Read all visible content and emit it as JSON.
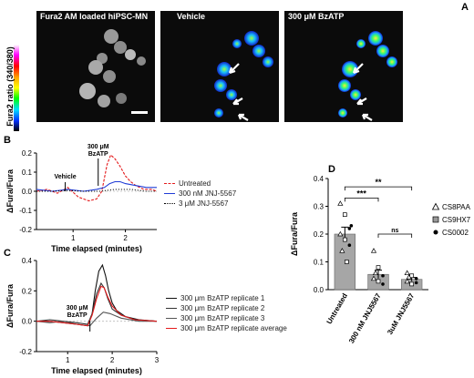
{
  "panels": {
    "a": "A",
    "b": "B",
    "c": "C",
    "d": "D"
  },
  "panel_a": {
    "titles": [
      "Fura2 AM loaded hiPSC-MN",
      "Vehicle",
      "300 μM BzATP"
    ],
    "colorbar_label": "Fura2 ratio (340/380)"
  },
  "colors": {
    "untreated": "#e41a1c",
    "jnj300": "#1f3bd6",
    "jnj3": "#000000",
    "rep1": "#111111",
    "rep2": "#333333",
    "rep3": "#555555",
    "avg": "#e41a1c",
    "bar": "#a6a6a6"
  },
  "chart_data": [
    {
      "type": "line",
      "panel": "B",
      "xlabel": "Time elapsed (minutes)",
      "ylabel": "ΔFura/Fura",
      "xlim": [
        0.3,
        2.6
      ],
      "ylim": [
        -0.2,
        0.2
      ],
      "xticks": [
        1,
        2
      ],
      "yticks": [
        -0.2,
        -0.1,
        0.0,
        0.1,
        0.2
      ],
      "yticklabels": [
        "-0.2",
        "-0.1",
        "0.0",
        "0.1",
        "0.2"
      ],
      "annotations": [
        {
          "text": "Vehicle",
          "x": 0.85
        },
        {
          "text": "300 μM BzATP",
          "x": 1.48
        }
      ],
      "series": [
        {
          "name": "Untreated",
          "x": [
            0.3,
            0.5,
            0.7,
            0.9,
            1.1,
            1.3,
            1.45,
            1.55,
            1.65,
            1.72,
            1.8,
            1.9,
            2.0,
            2.1,
            2.2,
            2.35,
            2.5,
            2.6
          ],
          "y": [
            0.0,
            0.01,
            -0.01,
            0.02,
            -0.03,
            -0.05,
            -0.04,
            0.0,
            0.14,
            0.19,
            0.17,
            0.13,
            0.08,
            0.05,
            0.03,
            0.01,
            0.01,
            0.0
          ]
        },
        {
          "name": "300 nM JNJ-5567",
          "x": [
            0.3,
            0.6,
            0.9,
            1.2,
            1.45,
            1.6,
            1.7,
            1.8,
            1.9,
            2.0,
            2.2,
            2.4,
            2.6
          ],
          "y": [
            0.01,
            0.0,
            0.01,
            0.0,
            0.01,
            0.02,
            0.04,
            0.05,
            0.05,
            0.04,
            0.03,
            0.02,
            0.02
          ]
        },
        {
          "name": "3 μM JNJ-5567",
          "x": [
            0.3,
            0.6,
            0.9,
            1.2,
            1.5,
            1.8,
            2.1,
            2.4,
            2.6
          ],
          "y": [
            0.0,
            0.0,
            0.005,
            0.0,
            0.0,
            0.01,
            0.01,
            0.0,
            0.0
          ]
        }
      ]
    },
    {
      "type": "line",
      "panel": "C",
      "xlabel": "Time elapsed (minutes)",
      "ylabel": "ΔFura/Fura",
      "xlim": [
        0.3,
        3.0
      ],
      "ylim": [
        -0.2,
        0.4
      ],
      "xticks": [
        1,
        2,
        3
      ],
      "yticks": [
        -0.2,
        0.0,
        0.2,
        0.4
      ],
      "yticklabels": [
        "-0.2",
        "0.0",
        "0.2",
        "0.4"
      ],
      "annotations": [
        {
          "text": "300 μM BzATP",
          "x": 1.5
        }
      ],
      "series": [
        {
          "name": "300 μm BzATP replicate 1",
          "x": [
            0.3,
            0.6,
            0.9,
            1.2,
            1.45,
            1.55,
            1.62,
            1.7,
            1.78,
            1.85,
            1.92,
            2.0,
            2.1,
            2.3,
            2.6,
            3.0
          ],
          "y": [
            0.0,
            0.0,
            -0.01,
            -0.02,
            -0.03,
            0.05,
            0.2,
            0.33,
            0.37,
            0.3,
            0.2,
            0.12,
            0.07,
            0.03,
            0.01,
            0.0
          ]
        },
        {
          "name": "300 μm BzATP replicate 2",
          "x": [
            0.3,
            0.6,
            0.9,
            1.2,
            1.45,
            1.55,
            1.65,
            1.75,
            1.82,
            1.9,
            2.0,
            2.2,
            2.5,
            3.0
          ],
          "y": [
            0.0,
            0.01,
            0.0,
            -0.01,
            -0.02,
            0.05,
            0.18,
            0.25,
            0.22,
            0.15,
            0.08,
            0.04,
            0.01,
            0.0
          ]
        },
        {
          "name": "300 μm BzATP replicate 3",
          "x": [
            0.3,
            0.6,
            0.9,
            1.2,
            1.5,
            1.65,
            1.8,
            1.95,
            2.2,
            2.6,
            3.0
          ],
          "y": [
            0.0,
            -0.01,
            0.0,
            -0.02,
            -0.03,
            0.02,
            0.06,
            0.05,
            0.02,
            0.0,
            0.0
          ]
        },
        {
          "name": "300 μm BzATP replicate average",
          "x": [
            0.3,
            0.6,
            0.9,
            1.2,
            1.45,
            1.55,
            1.65,
            1.75,
            1.82,
            1.9,
            2.0,
            2.2,
            2.5,
            3.0
          ],
          "y": [
            0.0,
            0.0,
            -0.01,
            -0.02,
            -0.03,
            0.04,
            0.15,
            0.23,
            0.22,
            0.16,
            0.1,
            0.04,
            0.01,
            0.0
          ]
        }
      ]
    },
    {
      "type": "bar",
      "panel": "D",
      "ylabel": "ΔFura/Fura",
      "ylim": [
        0.0,
        0.4
      ],
      "yticks": [
        0.0,
        0.1,
        0.2,
        0.3,
        0.4
      ],
      "yticklabels": [
        "0.0",
        "0.1",
        "0.2",
        "0.3",
        "0.4"
      ],
      "categories": [
        "Untreated",
        "300 nM JNJ5567",
        "3uM JNJ5567"
      ],
      "values": [
        0.2,
        0.055,
        0.037
      ],
      "errors": [
        0.025,
        0.015,
        0.007
      ],
      "points": [
        [
          0.31,
          0.27,
          0.22,
          0.2,
          0.18,
          0.16,
          0.14,
          0.1,
          0.23
        ],
        [
          0.14,
          0.08,
          0.05,
          0.04,
          0.03,
          0.02,
          0.06
        ],
        [
          0.06,
          0.05,
          0.04,
          0.03,
          0.02,
          0.025,
          0.045
        ]
      ],
      "significance": [
        {
          "pair": [
            0,
            2
          ],
          "label": "**"
        },
        {
          "pair": [
            0,
            1
          ],
          "label": "***"
        },
        {
          "pair": [
            1,
            2
          ],
          "label": "ns"
        }
      ],
      "legend": [
        "CS8PAA",
        "CS9HX7",
        "CS0002"
      ]
    }
  ]
}
